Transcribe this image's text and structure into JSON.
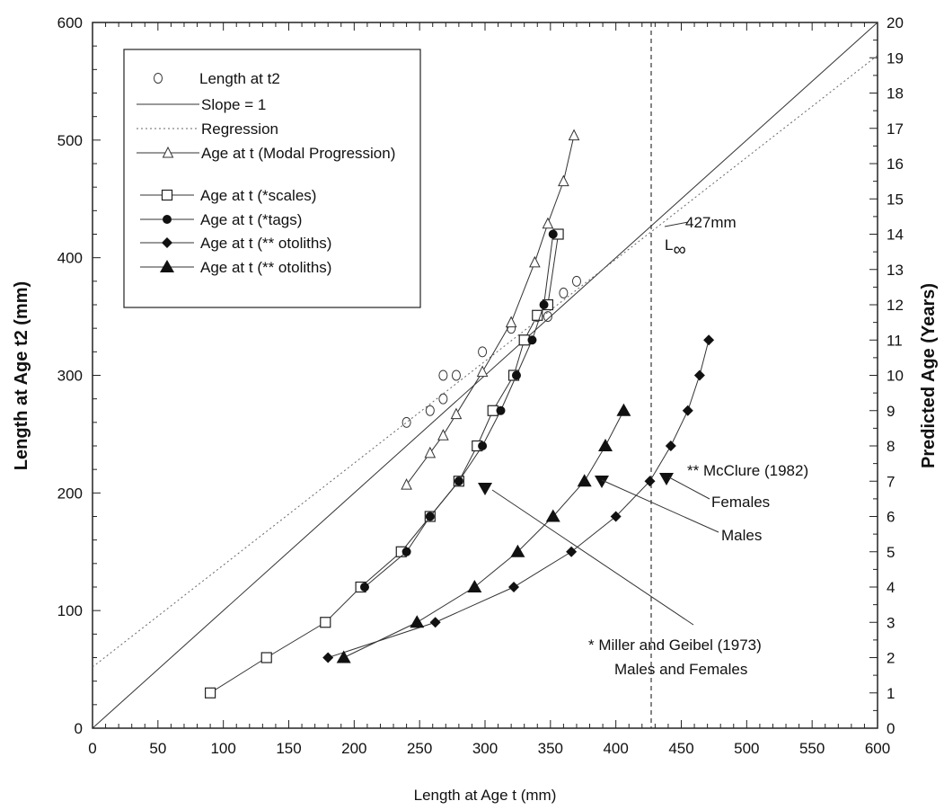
{
  "chart_data": {
    "type": "scatter",
    "xlabel": "Length at Age t (mm)",
    "ylabel": "Length at Age t2 (mm)",
    "y2label": "Predicted Age (Years)",
    "xlim": [
      0,
      600
    ],
    "ylim": [
      0,
      600
    ],
    "y2lim": [
      0,
      20
    ],
    "xticks": [
      "0",
      "50",
      "100",
      "150",
      "200",
      "250",
      "300",
      "350",
      "400",
      "450",
      "500",
      "550",
      "600"
    ],
    "yticks": [
      "0",
      "100",
      "200",
      "300",
      "400",
      "500",
      "600"
    ],
    "y2ticks": [
      "0",
      "1",
      "2",
      "3",
      "4",
      "5",
      "6",
      "7",
      "8",
      "9",
      "10",
      "11",
      "12",
      "13",
      "14",
      "15",
      "16",
      "17",
      "18",
      "19",
      "20"
    ],
    "grid": false,
    "legend_position": "top-left",
    "legend": [
      {
        "label": "Length at t2",
        "marker": "open-circle",
        "line": "none"
      },
      {
        "label": "Slope = 1",
        "marker": "none",
        "line": "solid"
      },
      {
        "label": "Regression",
        "marker": "none",
        "line": "dotted"
      },
      {
        "label": "Age at t (Modal Progression)",
        "marker": "open-triangle",
        "line": "solid"
      },
      {
        "label": "Age at t  (*scales)",
        "marker": "open-square",
        "line": "solid"
      },
      {
        "label": "Age  at t (*tags)",
        "marker": "filled-circle",
        "line": "solid"
      },
      {
        "label": "Age  at t (** otoliths)",
        "marker": "filled-diamond",
        "line": "solid"
      },
      {
        "label": "Age  at t (** otoliths)",
        "marker": "filled-triangle",
        "line": "solid"
      }
    ],
    "series": [
      {
        "axis": "left",
        "marker": "open-circle",
        "points": [
          [
            240,
            260
          ],
          [
            258,
            270
          ],
          [
            268,
            280
          ],
          [
            268,
            300
          ],
          [
            278,
            300
          ],
          [
            298,
            320
          ],
          [
            320,
            340
          ],
          [
            340,
            350
          ],
          [
            348,
            350
          ],
          [
            348,
            360
          ],
          [
            360,
            370
          ],
          [
            370,
            380
          ]
        ]
      },
      {
        "axis": "left",
        "marker": "none",
        "line": "solid",
        "points": [
          [
            0,
            0
          ],
          [
            600,
            600
          ]
        ]
      },
      {
        "axis": "left",
        "marker": "none",
        "line": "dotted",
        "points": [
          [
            0,
            52
          ],
          [
            600,
            572
          ]
        ]
      },
      {
        "axis": "right",
        "marker": "open-triangle",
        "points": [
          [
            240,
            6.9
          ],
          [
            258,
            7.8
          ],
          [
            268,
            8.3
          ],
          [
            278,
            8.9
          ],
          [
            298,
            10.1
          ],
          [
            320,
            11.5
          ],
          [
            338,
            13.2
          ],
          [
            348,
            14.3
          ],
          [
            360,
            15.5
          ],
          [
            368,
            16.8
          ]
        ]
      },
      {
        "axis": "right",
        "marker": "open-square",
        "points": [
          [
            90,
            1
          ],
          [
            133,
            2
          ],
          [
            178,
            3
          ],
          [
            205,
            4
          ],
          [
            236,
            5
          ],
          [
            258,
            6
          ],
          [
            280,
            7
          ],
          [
            294,
            8
          ],
          [
            306,
            9
          ],
          [
            322,
            10
          ],
          [
            330,
            11
          ],
          [
            340,
            11.7
          ],
          [
            348,
            12
          ],
          [
            356,
            14
          ]
        ]
      },
      {
        "axis": "right",
        "marker": "filled-circle",
        "points": [
          [
            208,
            4
          ],
          [
            240,
            5
          ],
          [
            258,
            6
          ],
          [
            280,
            7
          ],
          [
            298,
            8
          ],
          [
            312,
            9
          ],
          [
            324,
            10
          ],
          [
            336,
            11
          ],
          [
            345,
            12
          ],
          [
            352,
            14
          ]
        ]
      },
      {
        "axis": "right",
        "marker": "filled-diamond",
        "points": [
          [
            180,
            2
          ],
          [
            262,
            3
          ],
          [
            322,
            4
          ],
          [
            366,
            5
          ],
          [
            400,
            6
          ],
          [
            426,
            7
          ],
          [
            442,
            8
          ],
          [
            455,
            9
          ],
          [
            464,
            10
          ],
          [
            471,
            11
          ]
        ]
      },
      {
        "axis": "right",
        "marker": "filled-triangle",
        "points": [
          [
            192,
            2
          ],
          [
            248,
            3
          ],
          [
            292,
            4
          ],
          [
            325,
            5
          ],
          [
            352,
            6
          ],
          [
            376,
            7
          ],
          [
            392,
            8
          ],
          [
            406,
            9
          ]
        ]
      }
    ],
    "annotations": {
      "linf_value": "427mm",
      "linf_label": "L",
      "linf_subscript": "∞",
      "linf_x": 427,
      "mcclure": "** McClure (1982)",
      "females": "Females",
      "males": "Males",
      "miller_line1": "* Miller and Geibel (1973)",
      "miller_line2": "Males and Females"
    }
  }
}
